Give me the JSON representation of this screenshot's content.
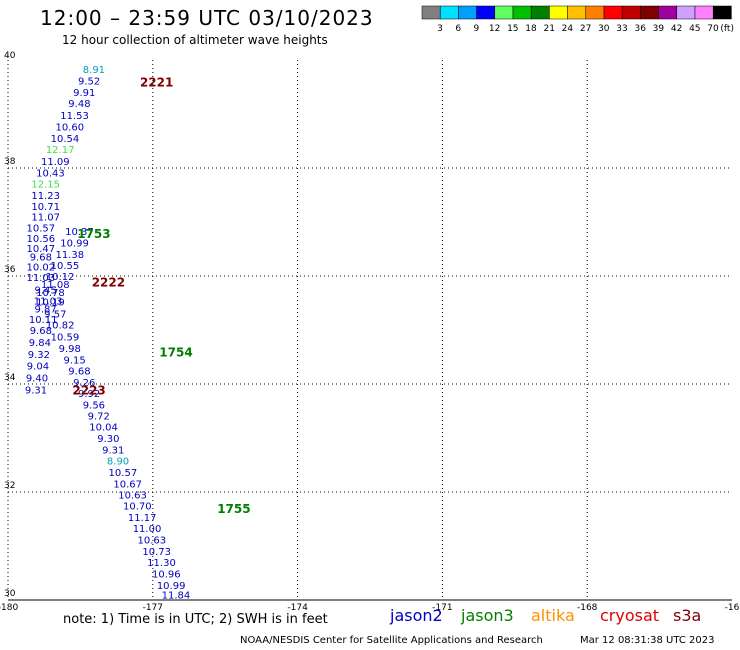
{
  "title": "12:00 – 23:59 UTC 03/10/2023",
  "subtitle": "12 hour collection of altimeter wave heights",
  "color_scale": {
    "colors": [
      "#808080",
      "#00e0ff",
      "#00a0ff",
      "#0000ff",
      "#60ff60",
      "#00c000",
      "#008000",
      "#ffff00",
      "#ffc000",
      "#ff8000",
      "#ff0000",
      "#c00000",
      "#800000",
      "#a000a0",
      "#d0a0ff",
      "#ff80ff",
      "#000000"
    ],
    "labels": [
      "3",
      "6",
      "9",
      "12",
      "15",
      "18",
      "21",
      "24",
      "27",
      "30",
      "33",
      "36",
      "39",
      "42",
      "45",
      "70",
      "(ft)"
    ]
  },
  "footer": {
    "note": "note: 1) Time is in UTC; 2) SWH is in feet",
    "credit": "NOAA/NESDIS Center for Satellite Applications and Research",
    "timestamp": "Mar 12 08:31:38 UTC 2023"
  },
  "satellites": [
    {
      "name": "jason2",
      "color": "#0000c0"
    },
    {
      "name": "jason3",
      "color": "#008000"
    },
    {
      "name": "altika",
      "color": "#ff9000"
    },
    {
      "name": "cryosat",
      "color": "#e00000"
    },
    {
      "name": "s3a",
      "color": "#800000"
    }
  ],
  "chart_data": {
    "type": "scatter",
    "x_ticks": [
      "-180",
      "-177",
      "-174",
      "-171",
      "-168",
      "-16"
    ],
    "y_ticks": [
      "40",
      "38",
      "36",
      "34",
      "32",
      "30"
    ],
    "xlim": [
      -180,
      -165
    ],
    "ylim": [
      30,
      40
    ],
    "grid": true,
    "time_labels": [
      {
        "text": "2221",
        "lon": -177.5,
        "lat": 39.6,
        "color": "#800000"
      },
      {
        "text": "1753",
        "lon": -178.8,
        "lat": 36.8,
        "color": "#008000"
      },
      {
        "text": "2222",
        "lon": -178.5,
        "lat": 35.9,
        "color": "#800000"
      },
      {
        "text": "1754",
        "lon": -177.1,
        "lat": 34.6,
        "color": "#008000"
      },
      {
        "text": "2223",
        "lon": -178.9,
        "lat": 33.9,
        "color": "#800000"
      },
      {
        "text": "1755",
        "lon": -175.9,
        "lat": 31.7,
        "color": "#008000"
      }
    ],
    "points": [
      {
        "lon": -178.8,
        "lat": 39.83,
        "v": "8.91",
        "color": "#00a0c0"
      },
      {
        "lon": -178.9,
        "lat": 39.62,
        "v": "9.52",
        "color": "#0000c0"
      },
      {
        "lon": -179.0,
        "lat": 39.41,
        "v": "9.91",
        "color": "#0000c0"
      },
      {
        "lon": -179.1,
        "lat": 39.2,
        "v": "9.48",
        "color": "#0000c0"
      },
      {
        "lon": -179.2,
        "lat": 38.98,
        "v": "11.53",
        "color": "#0000c0"
      },
      {
        "lon": -179.3,
        "lat": 38.77,
        "v": "10.60",
        "color": "#0000c0"
      },
      {
        "lon": -179.4,
        "lat": 38.56,
        "v": "10.54",
        "color": "#0000c0"
      },
      {
        "lon": -179.5,
        "lat": 38.35,
        "v": "12.17",
        "color": "#40e040"
      },
      {
        "lon": -179.6,
        "lat": 38.13,
        "v": "11.09",
        "color": "#0000c0"
      },
      {
        "lon": -179.7,
        "lat": 37.92,
        "v": "10.43",
        "color": "#0000c0"
      },
      {
        "lon": -179.8,
        "lat": 37.71,
        "v": "12.15",
        "color": "#40e040"
      },
      {
        "lon": -179.8,
        "lat": 37.5,
        "v": "11.23",
        "color": "#0000c0"
      },
      {
        "lon": -179.8,
        "lat": 37.3,
        "v": "10.71",
        "color": "#0000c0"
      },
      {
        "lon": -179.8,
        "lat": 37.1,
        "v": "11.07",
        "color": "#0000c0"
      },
      {
        "lon": -179.9,
        "lat": 36.9,
        "v": "10.57",
        "color": "#0000c0"
      },
      {
        "lon": -179.9,
        "lat": 36.7,
        "v": "10.56",
        "color": "#0000c0"
      },
      {
        "lon": -179.9,
        "lat": 36.52,
        "v": "10.47",
        "color": "#0000c0"
      },
      {
        "lon": -179.9,
        "lat": 36.36,
        "v": "9.68",
        "color": "#0000c0"
      },
      {
        "lon": -179.9,
        "lat": 36.18,
        "v": "10.02",
        "color": "#0000c0"
      },
      {
        "lon": -179.9,
        "lat": 35.98,
        "v": "11.03",
        "color": "#0000c0"
      },
      {
        "lon": -179.8,
        "lat": 35.75,
        "v": "9.45",
        "color": "#0000c0"
      },
      {
        "lon": -179.7,
        "lat": 35.53,
        "v": "10.19",
        "color": "#0000c0"
      },
      {
        "lon": -179.6,
        "lat": 35.31,
        "v": "9.57",
        "color": "#0000c0"
      },
      {
        "lon": -179.5,
        "lat": 35.1,
        "v": "10.82",
        "color": "#0000c0"
      },
      {
        "lon": -179.4,
        "lat": 34.88,
        "v": "10.59",
        "color": "#0000c0"
      },
      {
        "lon": -179.3,
        "lat": 34.67,
        "v": "9.98",
        "color": "#0000c0"
      },
      {
        "lon": -179.2,
        "lat": 34.45,
        "v": "9.15",
        "color": "#0000c0"
      },
      {
        "lon": -179.1,
        "lat": 34.25,
        "v": "9.68",
        "color": "#0000c0"
      },
      {
        "lon": -179.0,
        "lat": 34.04,
        "v": "9.26",
        "color": "#0000c0"
      },
      {
        "lon": -178.9,
        "lat": 33.83,
        "v": "9.92",
        "color": "#0000c0"
      },
      {
        "lon": -178.8,
        "lat": 33.62,
        "v": "9.56",
        "color": "#0000c0"
      },
      {
        "lon": -178.7,
        "lat": 33.42,
        "v": "9.72",
        "color": "#0000c0"
      },
      {
        "lon": -178.6,
        "lat": 33.21,
        "v": "10.04",
        "color": "#0000c0"
      },
      {
        "lon": -178.5,
        "lat": 33.0,
        "v": "9.30",
        "color": "#0000c0"
      },
      {
        "lon": -178.4,
        "lat": 32.79,
        "v": "9.31",
        "color": "#0000c0"
      },
      {
        "lon": -178.3,
        "lat": 32.58,
        "v": "8.90",
        "color": "#00a0c0"
      },
      {
        "lon": -178.2,
        "lat": 32.37,
        "v": "10.57",
        "color": "#0000c0"
      },
      {
        "lon": -178.1,
        "lat": 32.16,
        "v": "10.67",
        "color": "#0000c0"
      },
      {
        "lon": -178.0,
        "lat": 31.95,
        "v": "10.63",
        "color": "#0000c0"
      },
      {
        "lon": -177.9,
        "lat": 31.75,
        "v": "10.70",
        "color": "#0000c0"
      },
      {
        "lon": -177.8,
        "lat": 31.54,
        "v": "11.17",
        "color": "#0000c0"
      },
      {
        "lon": -177.7,
        "lat": 31.33,
        "v": "11.00",
        "color": "#0000c0"
      },
      {
        "lon": -177.6,
        "lat": 31.12,
        "v": "10.63",
        "color": "#0000c0"
      },
      {
        "lon": -177.5,
        "lat": 30.91,
        "v": "10.73",
        "color": "#0000c0"
      },
      {
        "lon": -177.4,
        "lat": 30.7,
        "v": "11.30",
        "color": "#0000c0"
      },
      {
        "lon": -177.3,
        "lat": 30.49,
        "v": "10.96",
        "color": "#0000c0"
      },
      {
        "lon": -177.2,
        "lat": 30.28,
        "v": "10.99",
        "color": "#0000c0"
      },
      {
        "lon": -177.1,
        "lat": 30.1,
        "v": "11.84",
        "color": "#0000c0"
      },
      {
        "lon": -179.1,
        "lat": 36.83,
        "v": "10.37",
        "color": "#0000c0"
      },
      {
        "lon": -179.2,
        "lat": 36.62,
        "v": "10.99",
        "color": "#0000c0"
      },
      {
        "lon": -179.3,
        "lat": 36.41,
        "v": "11.38",
        "color": "#0000c0"
      },
      {
        "lon": -179.4,
        "lat": 36.2,
        "v": "10.55",
        "color": "#0000c0"
      },
      {
        "lon": -179.5,
        "lat": 36.0,
        "v": "10.12",
        "color": "#0000c0"
      },
      {
        "lon": -179.6,
        "lat": 35.85,
        "v": "11.08",
        "color": "#0000c0"
      },
      {
        "lon": -179.7,
        "lat": 35.7,
        "v": "10.78",
        "color": "#0000c0"
      },
      {
        "lon": -179.75,
        "lat": 35.55,
        "v": "11.03",
        "color": "#0000c0"
      },
      {
        "lon": -179.8,
        "lat": 35.4,
        "v": "9.87",
        "color": "#0000c0"
      },
      {
        "lon": -179.85,
        "lat": 35.2,
        "v": "10.11",
        "color": "#0000c0"
      },
      {
        "lon": -179.9,
        "lat": 35.0,
        "v": "9.68",
        "color": "#0000c0"
      },
      {
        "lon": -179.92,
        "lat": 34.78,
        "v": "9.84",
        "color": "#0000c0"
      },
      {
        "lon": -179.94,
        "lat": 34.56,
        "v": "9.32",
        "color": "#0000c0"
      },
      {
        "lon": -179.96,
        "lat": 34.34,
        "v": "9.04",
        "color": "#0000c0"
      },
      {
        "lon": -179.98,
        "lat": 34.12,
        "v": "9.40",
        "color": "#0000c0"
      },
      {
        "lon": -180.0,
        "lat": 33.9,
        "v": "9.31",
        "color": "#0000c0"
      }
    ]
  }
}
